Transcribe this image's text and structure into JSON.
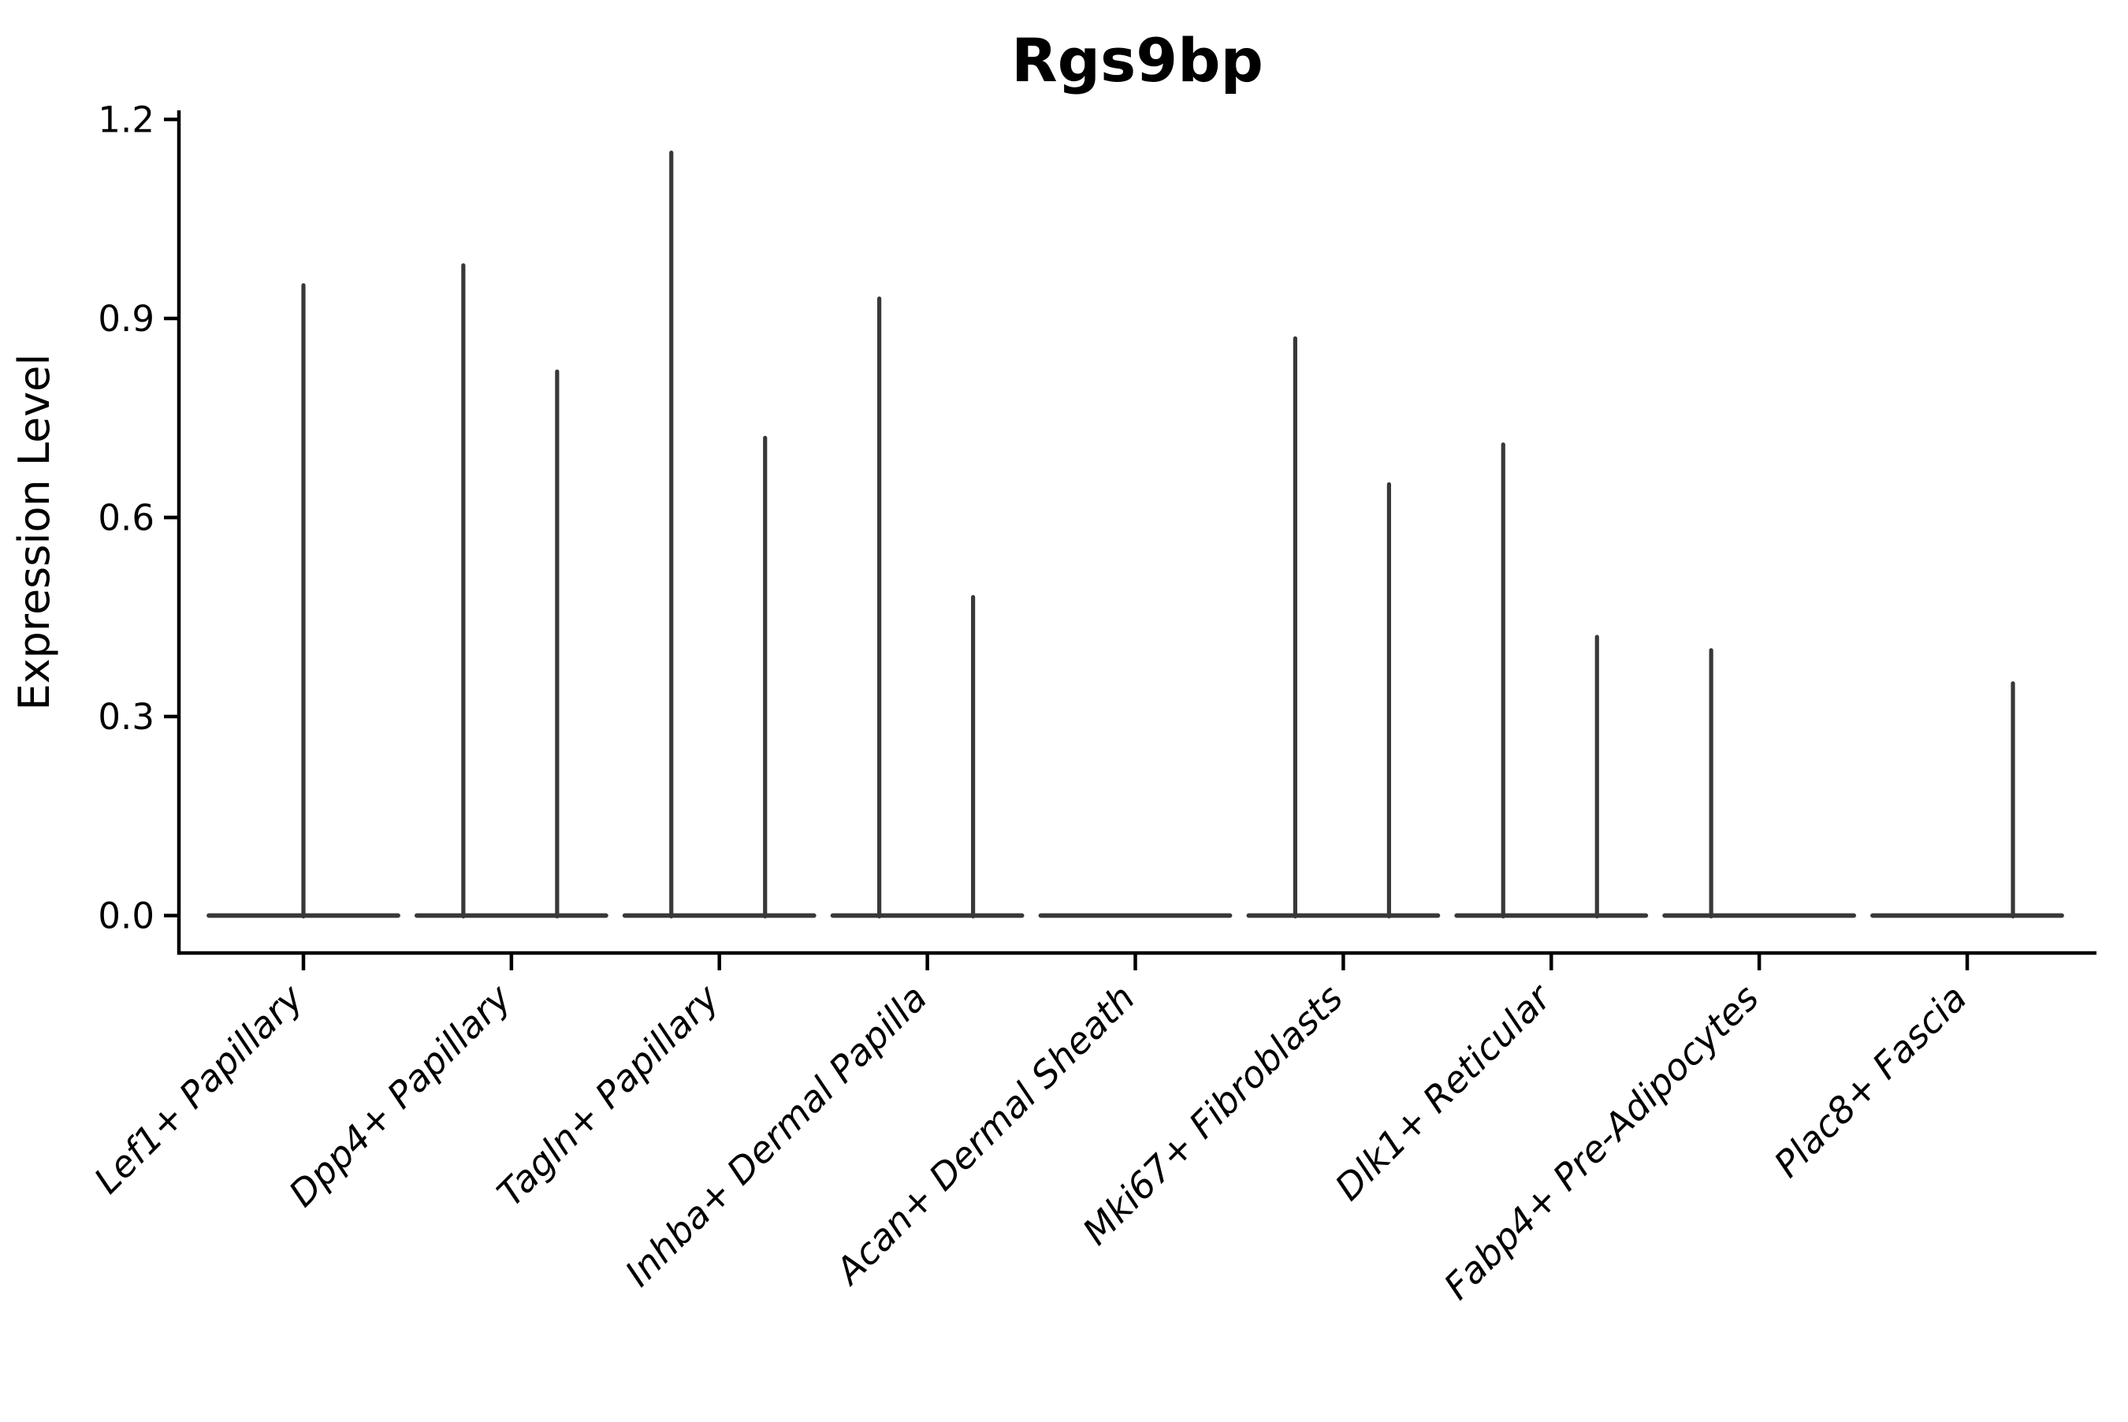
{
  "chart_data": {
    "type": "violin",
    "title": "Rgs9bp",
    "xlabel": "",
    "ylabel": "Expression Level",
    "ylim": [
      0,
      1.27
    ],
    "yticks": [
      "0.0",
      "0.3",
      "0.6",
      "0.9",
      "1.2"
    ],
    "grid": false,
    "legend": "none",
    "categories": [
      "Lef1+ Papillary",
      "Dpp4+ Papillary",
      "Tagln+ Papillary",
      "Inhba+ Dermal Papilla",
      "Acan+ Dermal Sheath",
      "Mki67+ Fibroblasts",
      "Dlk1+ Reticular",
      "Fabp4+ Pre-Adipocytes",
      "Plac8+ Fascia"
    ],
    "violins": [
      {
        "category": "Lef1+ Papillary",
        "spikes": [
          {
            "position": "center",
            "max_expression": 0.95
          }
        ]
      },
      {
        "category": "Dpp4+ Papillary",
        "spikes": [
          {
            "position": "left",
            "max_expression": 0.98
          },
          {
            "position": "right",
            "max_expression": 0.82
          }
        ]
      },
      {
        "category": "Tagln+ Papillary",
        "spikes": [
          {
            "position": "left",
            "max_expression": 1.15
          },
          {
            "position": "right",
            "max_expression": 0.72
          }
        ]
      },
      {
        "category": "Inhba+ Dermal Papilla",
        "spikes": [
          {
            "position": "left",
            "max_expression": 0.93
          },
          {
            "position": "right",
            "max_expression": 0.48
          }
        ]
      },
      {
        "category": "Acan+ Dermal Sheath",
        "spikes": []
      },
      {
        "category": "Mki67+ Fibroblasts",
        "spikes": [
          {
            "position": "left",
            "max_expression": 0.87
          },
          {
            "position": "right",
            "max_expression": 0.65
          }
        ]
      },
      {
        "category": "Dlk1+ Reticular",
        "spikes": [
          {
            "position": "left",
            "max_expression": 0.71
          },
          {
            "position": "right",
            "max_expression": 0.42
          }
        ]
      },
      {
        "category": "Fabp4+ Pre-Adipocytes",
        "spikes": [
          {
            "position": "left",
            "max_expression": 0.4
          }
        ]
      },
      {
        "category": "Plac8+ Fascia",
        "spikes": [
          {
            "position": "right",
            "max_expression": 0.35
          }
        ]
      }
    ],
    "baseline_value": 0.0,
    "colors": {
      "violin": "#383838",
      "axis": "#000000",
      "text": "#000000",
      "background": "#ffffff"
    }
  }
}
